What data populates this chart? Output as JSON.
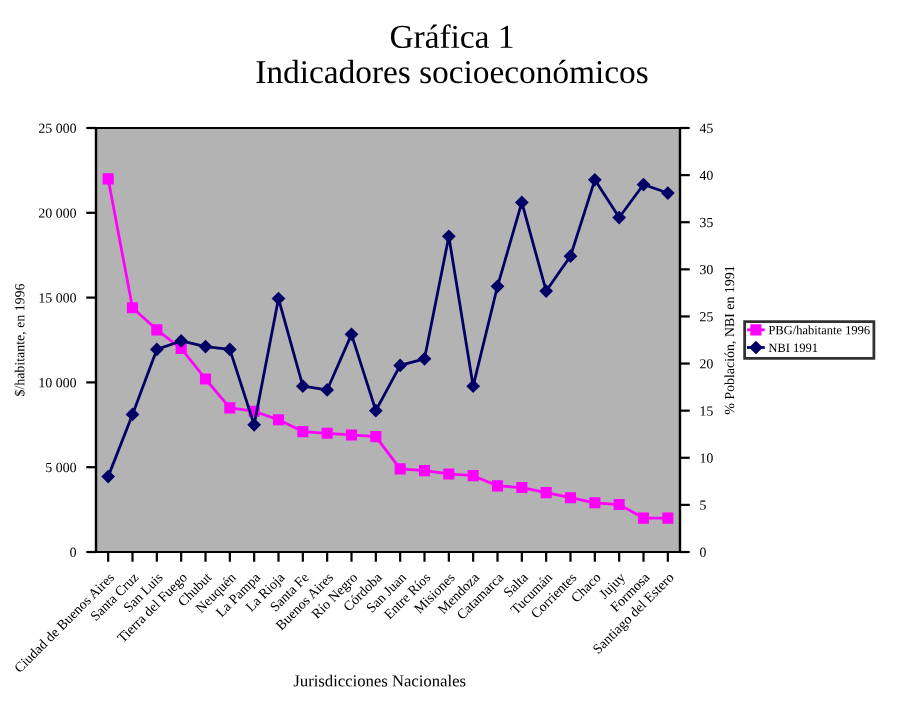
{
  "chart_data": {
    "type": "line",
    "title": "Gráfica 1",
    "subtitle": "Indicadores socioeconómicos",
    "xlabel": "Jurisdicciones Nacionales",
    "ylabel": "$/habitante, en 1996",
    "y2label": "% Población, NBI en 1991",
    "categories": [
      "Ciudad de Buenos Aires",
      "Santa Cruz",
      "San Luis",
      "Tierra del Fuego",
      "Chubut",
      "Neuquén",
      "La Pampa",
      "La Rioja",
      "Santa Fe",
      "Buenos Aires",
      "Río Negro",
      "Córdoba",
      "San Juan",
      "Entre Ríos",
      "Misiones",
      "Mendoza",
      "Catamarca",
      "Salta",
      "Tucumán",
      "Corrientes",
      "Chaco",
      "Jujuy",
      "Formosa",
      "Santiago del Estero"
    ],
    "series": [
      {
        "name": "PBG/habitante 1996",
        "color": "#ff00ff",
        "marker": "square",
        "values": [
          22000,
          14400,
          13100,
          12000,
          10200,
          8500,
          8300,
          7800,
          7100,
          7000,
          6900,
          6800,
          4900,
          4800,
          4600,
          4500,
          3900,
          3800,
          3500,
          3200,
          2900,
          2800,
          2000,
          2000
        ]
      },
      {
        "name": "NBI 1991",
        "color": "#000066",
        "marker": "diamond",
        "axis": "y2",
        "values": [
          8.0,
          14.6,
          21.5,
          22.4,
          21.8,
          21.5,
          13.5,
          26.9,
          17.6,
          17.2,
          23.1,
          15.0,
          19.8,
          20.5,
          33.5,
          17.6,
          28.2,
          37.1,
          27.7,
          31.4,
          39.5,
          35.5,
          39.0,
          38.1
        ]
      }
    ],
    "ylim": [
      0,
      25000
    ],
    "yticks": [
      {
        "value": 0,
        "label": "0"
      },
      {
        "value": 5000,
        "label": "5 000"
      },
      {
        "value": 10000,
        "label": "10 000"
      },
      {
        "value": 15000,
        "label": "15 000"
      },
      {
        "value": 20000,
        "label": "20 000"
      },
      {
        "value": 25000,
        "label": "25 000"
      }
    ],
    "y2lim": [
      0,
      45
    ],
    "y2ticks": [
      0,
      5,
      10,
      15,
      20,
      25,
      30,
      35,
      40,
      45
    ],
    "legend": "right",
    "line_style": "solid"
  }
}
